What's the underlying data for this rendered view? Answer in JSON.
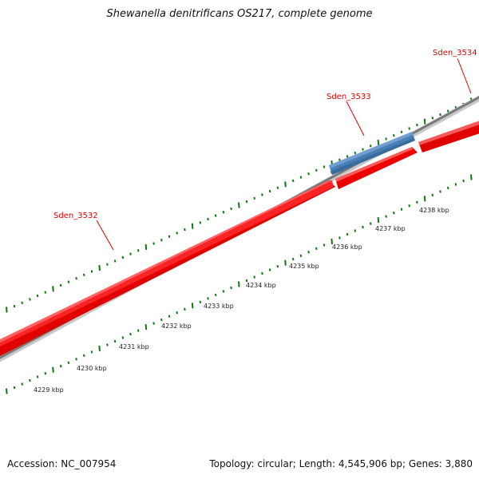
{
  "title": "Shewanella denitrificans OS217, complete genome",
  "footer": {
    "accession": "Accession: NC_007954",
    "summary": "Topology: circular; Length: 4,545,906 bp; Genes: 3,880"
  },
  "genes": [
    {
      "name": "Sden_3532",
      "strand": "forward",
      "color": "#ff0000"
    },
    {
      "name": "Sden_3533",
      "strand": "reverse",
      "color": "#4a7fb5"
    },
    {
      "name": "Sden_3534",
      "strand": "forward",
      "color": "#ff0000"
    }
  ],
  "ticks": [
    "4229 kbp",
    "4230 kbp",
    "4231 kbp",
    "4232 kbp",
    "4233 kbp",
    "4234 kbp",
    "4235 kbp",
    "4236 kbp",
    "4237 kbp",
    "4238 kbp"
  ],
  "colors": {
    "forward_gene": "#ff0000",
    "reverse_gene": "#4a7fb5",
    "backbone": "#808080",
    "gene_label": "#e00000",
    "tick": "#117711"
  }
}
